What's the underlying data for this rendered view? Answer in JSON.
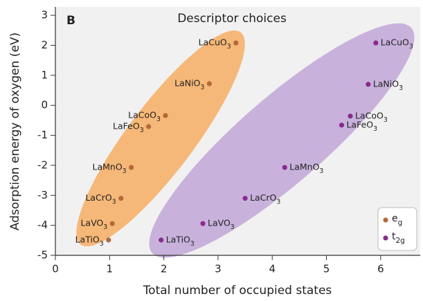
{
  "chart_data": {
    "type": "scatter",
    "panel_label": "B",
    "title": "Descriptor choices",
    "x_label": "Total number of occupied states",
    "y_label": "Adsorption energy of oxygen (eV)",
    "xlim": [
      0,
      6.73
    ],
    "ylim": [
      -5,
      3.28
    ],
    "xticks": [
      0,
      1,
      2,
      3,
      4,
      5,
      6
    ],
    "yticks": [
      -5,
      -4,
      -3,
      -2,
      -1,
      0,
      1,
      2,
      3
    ],
    "series": [
      {
        "name": "eg",
        "color": "#b5683a",
        "labels": [
          "LaCuO3",
          "LaNiO3",
          "LaCoO3",
          "LaFeO3",
          "LaMnO3",
          "LaCrO3",
          "LaVO3",
          "LaTiO3"
        ],
        "x": [
          3.33,
          2.84,
          2.03,
          1.72,
          1.4,
          1.21,
          1.05,
          0.98
        ],
        "values": [
          2.08,
          0.72,
          -0.34,
          -0.71,
          -2.07,
          -3.1,
          -3.94,
          -4.49
        ]
      },
      {
        "name": "t2g",
        "color": "#8a2a8e",
        "labels": [
          "LaCuO3",
          "LaNiO3",
          "LaCoO3",
          "LaFeO3",
          "LaMnO3",
          "LaCrO3",
          "LaVO3",
          "LaTiO3"
        ],
        "x": [
          5.91,
          5.77,
          5.44,
          5.28,
          4.23,
          3.5,
          2.72,
          1.95
        ],
        "values": [
          2.08,
          0.7,
          -0.36,
          -0.66,
          -2.07,
          -3.1,
          -3.94,
          -4.49
        ]
      }
    ]
  }
}
